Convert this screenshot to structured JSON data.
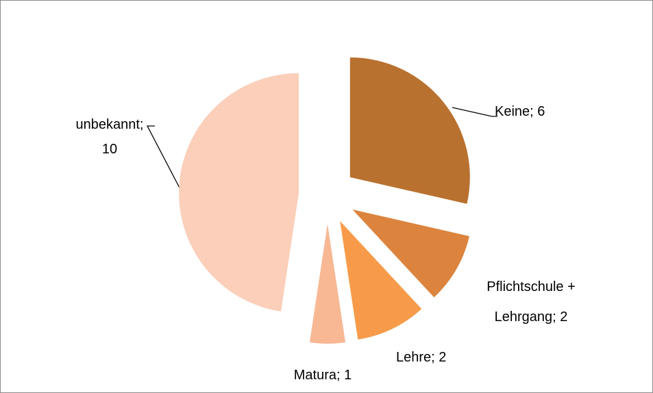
{
  "chart_data": {
    "type": "pie",
    "values": [
      6,
      2,
      2,
      1,
      10
    ],
    "value_labels": [
      "Keine; 6",
      "Pflichtschule + Lehrgang; 2",
      "Lehre; 2",
      "Matura; 1",
      "unbekannt; 10"
    ],
    "colors": [
      "#b9712f",
      "#dc843e",
      "#f79b4a",
      "#f8b894",
      "#fbcfba"
    ]
  }
}
